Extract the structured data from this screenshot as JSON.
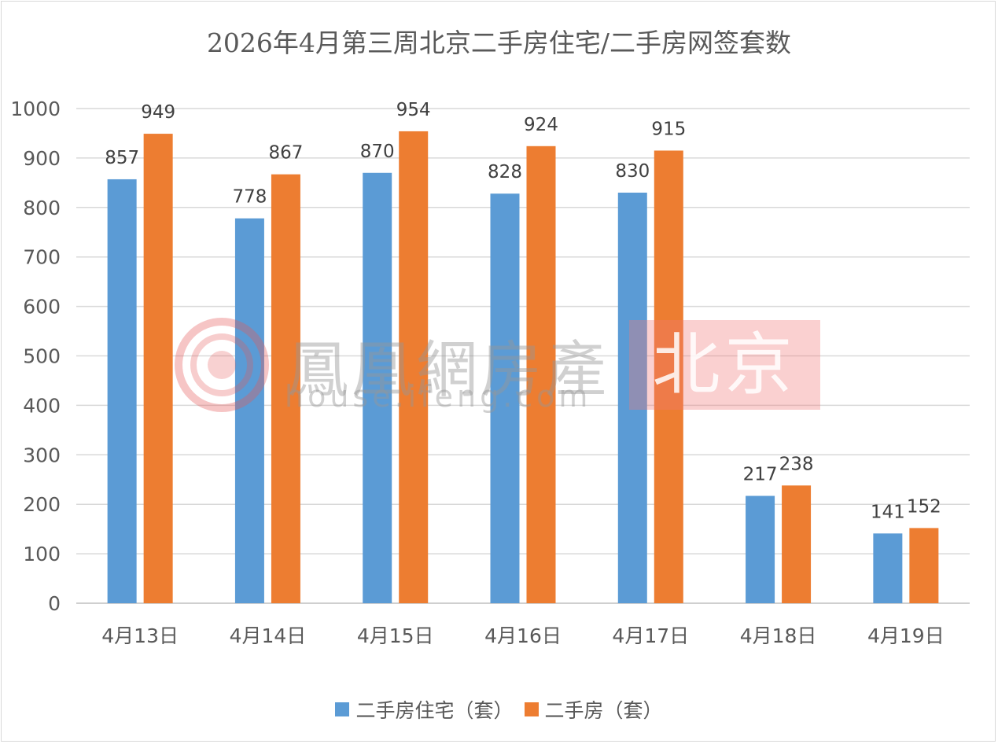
{
  "chart_data": {
    "type": "bar",
    "title": "2026年4月第三周北京二手房住宅/二手房网签套数",
    "categories": [
      "4月13日",
      "4月14日",
      "4月15日",
      "4月16日",
      "4月17日",
      "4月18日",
      "4月19日"
    ],
    "series": [
      {
        "name": "二手房住宅（套）",
        "color": "#5b9bd5",
        "values": [
          857,
          778,
          870,
          828,
          830,
          217,
          141
        ]
      },
      {
        "name": "二手房（套）",
        "color": "#ed7d31",
        "values": [
          949,
          867,
          954,
          924,
          915,
          238,
          152
        ]
      }
    ],
    "ylim": [
      0,
      1000
    ],
    "yticks": [
      0,
      100,
      200,
      300,
      400,
      500,
      600,
      700,
      800,
      900,
      1000
    ],
    "grid": true,
    "legend_position": "bottom",
    "xlabel": "",
    "ylabel": ""
  },
  "watermark": {
    "brand": "鳳凰網房產",
    "url": "house.ifeng.com",
    "city": "北京"
  }
}
